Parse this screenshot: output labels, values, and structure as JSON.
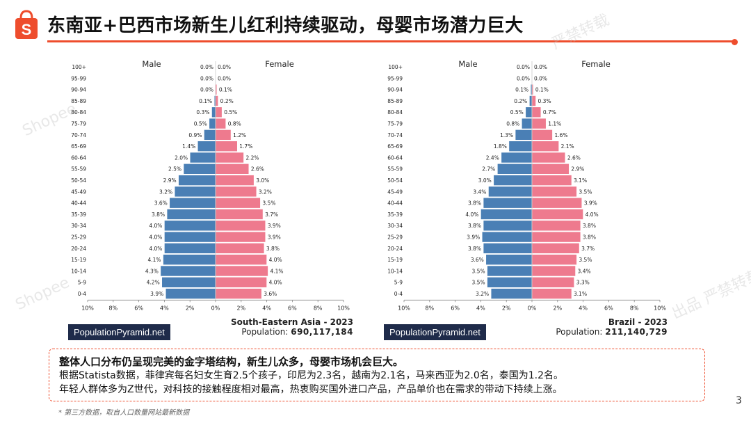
{
  "header": {
    "title": "东南亚+巴西市场新生儿红利持续驱动，母婴市场潜力巨大",
    "accent": "#ee4d2d"
  },
  "watermarks": [
    "Shopee",
    "出品 严禁转载",
    "Shopee",
    "严禁转载"
  ],
  "chart_data": [
    {
      "type": "bar",
      "subtype": "population-pyramid",
      "categories": [
        "100+",
        "95-99",
        "90-94",
        "85-89",
        "80-84",
        "75-79",
        "70-74",
        "65-69",
        "60-64",
        "55-59",
        "50-54",
        "45-49",
        "40-44",
        "35-39",
        "30-34",
        "25-29",
        "20-24",
        "15-19",
        "10-14",
        "5-9",
        "0-4"
      ],
      "series": [
        {
          "name": "Male",
          "color": "#4a7fb5",
          "values": [
            0.0,
            0.0,
            0.0,
            0.1,
            0.3,
            0.5,
            0.9,
            1.4,
            2.0,
            2.5,
            2.9,
            3.2,
            3.6,
            3.8,
            4.0,
            4.0,
            4.0,
            4.1,
            4.3,
            4.2,
            3.9
          ],
          "labels": [
            "0.0%",
            "0.0%",
            "0.0%",
            "0.1%",
            "0.3%",
            "0.5%",
            "0.9%",
            "1.4%",
            "2.0%",
            "2.5%",
            "2.9%",
            "3.2%",
            "3.6%",
            "3.8%",
            "4.0%",
            "4.0%",
            "4.0%",
            "4.1%",
            "4.3%",
            "4.2%",
            "3.9%"
          ]
        },
        {
          "name": "Female",
          "color": "#ee7a8e",
          "values": [
            0.0,
            0.0,
            0.1,
            0.2,
            0.5,
            0.8,
            1.2,
            1.7,
            2.2,
            2.6,
            3.0,
            3.2,
            3.5,
            3.7,
            3.9,
            3.9,
            3.8,
            4.0,
            4.1,
            4.0,
            3.6
          ],
          "labels": [
            "0.0%",
            "0.0%",
            "0.1%",
            "0.2%",
            "0.5%",
            "0.8%",
            "1.2%",
            "1.7%",
            "2.2%",
            "2.6%",
            "3.0%",
            "3.2%",
            "3.5%",
            "3.7%",
            "3.9%",
            "3.9%",
            "3.8%",
            "4.0%",
            "4.1%",
            "4.0%",
            "3.6%"
          ]
        }
      ],
      "xticks": [
        "10%",
        "8%",
        "6%",
        "4%",
        "2%",
        "0%",
        "2%",
        "4%",
        "6%",
        "8%",
        "10%"
      ],
      "xlim": [
        -10,
        10
      ],
      "source_label": "PopulationPyramid.net",
      "region": "South-Eastern Asia - 2023",
      "population_label": "Population:",
      "population_value": "690,117,184"
    },
    {
      "type": "bar",
      "subtype": "population-pyramid",
      "categories": [
        "100+",
        "95-99",
        "90-94",
        "85-89",
        "80-84",
        "75-79",
        "70-74",
        "65-69",
        "60-64",
        "55-59",
        "50-54",
        "45-49",
        "40-44",
        "35-39",
        "30-34",
        "25-29",
        "20-24",
        "15-19",
        "10-14",
        "5-9",
        "0-4"
      ],
      "series": [
        {
          "name": "Male",
          "color": "#4a7fb5",
          "values": [
            0.0,
            0.0,
            0.1,
            0.2,
            0.5,
            0.8,
            1.3,
            1.8,
            2.4,
            2.7,
            3.0,
            3.4,
            3.8,
            4.0,
            3.8,
            3.9,
            3.8,
            3.6,
            3.5,
            3.5,
            3.2
          ],
          "labels": [
            "0.0%",
            "0.0%",
            "0.1%",
            "0.2%",
            "0.5%",
            "0.8%",
            "1.3%",
            "1.8%",
            "2.4%",
            "2.7%",
            "3.0%",
            "3.4%",
            "3.8%",
            "4.0%",
            "3.8%",
            "3.9%",
            "3.8%",
            "3.6%",
            "3.5%",
            "3.5%",
            "3.2%"
          ]
        },
        {
          "name": "Female",
          "color": "#ee7a8e",
          "values": [
            0.0,
            0.0,
            0.1,
            0.3,
            0.7,
            1.1,
            1.6,
            2.1,
            2.6,
            2.9,
            3.1,
            3.5,
            3.9,
            4.0,
            3.8,
            3.8,
            3.7,
            3.5,
            3.4,
            3.3,
            3.1
          ],
          "labels": [
            "0.0%",
            "0.0%",
            "0.1%",
            "0.3%",
            "0.7%",
            "1.1%",
            "1.6%",
            "2.1%",
            "2.6%",
            "2.9%",
            "3.1%",
            "3.5%",
            "3.9%",
            "4.0%",
            "3.8%",
            "3.8%",
            "3.7%",
            "3.5%",
            "3.4%",
            "3.3%",
            "3.1%"
          ]
        }
      ],
      "xticks": [
        "10%",
        "8%",
        "6%",
        "4%",
        "2%",
        "0%",
        "2%",
        "4%",
        "6%",
        "8%",
        "10%"
      ],
      "xlim": [
        -10,
        10
      ],
      "source_label": "PopulationPyramid.net",
      "region": "Brazil - 2023",
      "population_label": "Population:",
      "population_value": "211,140,729"
    }
  ],
  "summary": {
    "line1": "整体人口分布仍呈现完美的金字塔结构，新生儿众多，母婴市场机会巨大。",
    "line2": "根据Statista数据，菲律宾每名妇女生育2.5个孩子，印尼为2.3名，越南为2.1名，马来西亚为2.0名，泰国为1.2名。",
    "line3": "年轻人群体多为Z世代，对科技的接触程度相对最高，热衷购买国外进口产品，产品单价也在需求的带动下持续上涨。"
  },
  "footnote": "* 第三方数据，取自人口数量网站最新数据",
  "page_number": "3"
}
